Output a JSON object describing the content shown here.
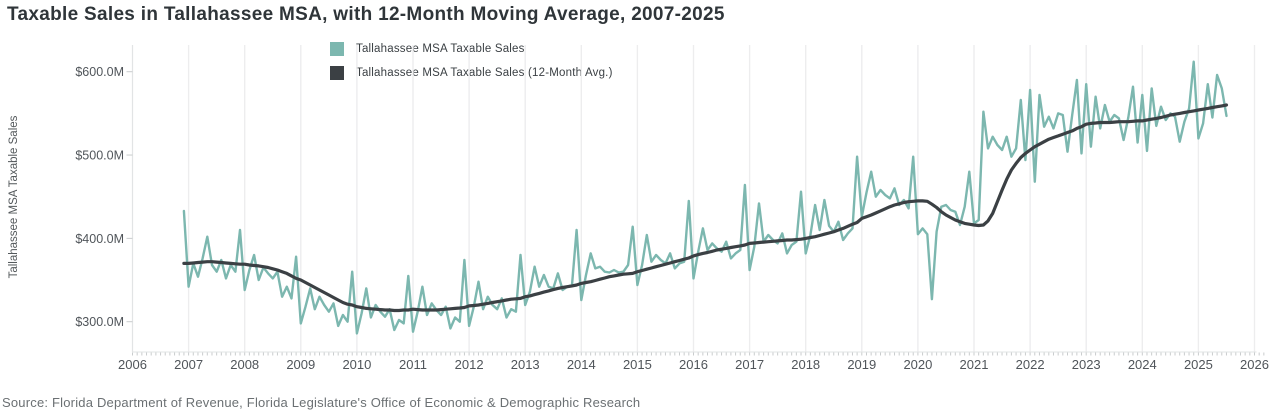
{
  "title": "Taxable Sales in Tallahassee MSA, with 12-Month Moving Average, 2007-2025",
  "source": "Source: Florida Department of Revenue, Florida Legislature's Office of Economic & Demographic Research",
  "colors": {
    "sales_line": "#7cb7af",
    "moving_avg_line": "#3b4044",
    "gridline": "#ededee",
    "axis_line": "#e2e4e5",
    "tick": "#c9cccd",
    "tick_label": "#50555a",
    "axis_title": "#53585b"
  },
  "legend": {
    "items": [
      {
        "label": "Tallahassee MSA Taxable Sales",
        "color": "#7cb7af"
      },
      {
        "label": "Tallahassee MSA Taxable Sales (12-Month Avg.)",
        "color": "#3b4044"
      }
    ]
  },
  "y_axis": {
    "title": "Tallahassee MSA Taxable Sales",
    "tick_labels": [
      "$300.0M",
      "$400.0M",
      "$500.0M",
      "$600.0M"
    ],
    "tick_values": [
      300,
      400,
      500,
      600
    ]
  },
  "x_axis": {
    "tick_labels": [
      "2006",
      "2007",
      "2008",
      "2009",
      "2010",
      "2011",
      "2012",
      "2013",
      "2014",
      "2015",
      "2016",
      "2017",
      "2018",
      "2019",
      "2020",
      "2021",
      "2022",
      "2023",
      "2024",
      "2025",
      "2026"
    ],
    "tick_values": [
      2006,
      2007,
      2008,
      2009,
      2010,
      2011,
      2012,
      2013,
      2014,
      2015,
      2016,
      2017,
      2018,
      2019,
      2020,
      2021,
      2022,
      2023,
      2024,
      2025,
      2026
    ]
  },
  "chart_data": {
    "type": "line",
    "x_unit": "decimal_year_monthly",
    "x_start": 2006.9167,
    "x_step": 0.0833,
    "xlim": [
      2006,
      2026.2
    ],
    "ylim_monetary_millions": [
      260,
      635
    ],
    "grid": "vertical-only",
    "legend_position": "top-inside",
    "series": [
      {
        "name": "Tallahassee MSA Taxable Sales",
        "color": "#7cb7af",
        "width": 2.4,
        "values": [
          433,
          342,
          370,
          354,
          376,
          402,
          368,
          360,
          374,
          352,
          368,
          360,
          410,
          338,
          362,
          380,
          350,
          365,
          358,
          352,
          360,
          330,
          342,
          328,
          378,
          298,
          318,
          340,
          315,
          330,
          320,
          312,
          322,
          295,
          308,
          300,
          360,
          286,
          310,
          340,
          305,
          320,
          312,
          306,
          315,
          290,
          302,
          298,
          355,
          288,
          312,
          342,
          308,
          322,
          314,
          308,
          318,
          292,
          305,
          300,
          374,
          295,
          318,
          348,
          315,
          330,
          320,
          315,
          328,
          305,
          315,
          312,
          380,
          320,
          336,
          366,
          342,
          356,
          342,
          340,
          358,
          338,
          342,
          344,
          410,
          326,
          356,
          382,
          364,
          366,
          360,
          359,
          362,
          359,
          360,
          368,
          414,
          344,
          368,
          404,
          372,
          380,
          374,
          370,
          382,
          364,
          370,
          372,
          445,
          352,
          384,
          412,
          386,
          394,
          388,
          384,
          396,
          376,
          382,
          386,
          464,
          362,
          390,
          442,
          396,
          404,
          398,
          394,
          406,
          382,
          392,
          396,
          456,
          382,
          404,
          440,
          410,
          446,
          415,
          408,
          420,
          398,
          406,
          412,
          498,
          426,
          455,
          480,
          450,
          458,
          452,
          448,
          460,
          440,
          446,
          436,
          498,
          405,
          412,
          405,
          327,
          408,
          438,
          440,
          434,
          432,
          416,
          438,
          480,
          418,
          422,
          552,
          508,
          522,
          512,
          506,
          522,
          498,
          508,
          566,
          494,
          578,
          468,
          572,
          534,
          546,
          532,
          550,
          548,
          504,
          548,
          590,
          502,
          585,
          510,
          570,
          532,
          560,
          540,
          548,
          544,
          518,
          545,
          582,
          515,
          572,
          505,
          580,
          535,
          558,
          542,
          550,
          546,
          516,
          540,
          556,
          612,
          520,
          538,
          585,
          545,
          596,
          580,
          547
        ]
      },
      {
        "name": "Tallahassee MSA Taxable Sales (12-Month Avg.)",
        "color": "#3b4044",
        "width": 3.2,
        "values": [
          370,
          370,
          370.5,
          371,
          371.5,
          372,
          372,
          371.5,
          371,
          370.5,
          370,
          369.5,
          369,
          369,
          368,
          367.5,
          367,
          366,
          365,
          363.5,
          362,
          360,
          358,
          355,
          352,
          350,
          347,
          344,
          341,
          338,
          335,
          332,
          329,
          326,
          323,
          321,
          320,
          318,
          317,
          316,
          315.5,
          315,
          314.5,
          314,
          314,
          313.5,
          313.5,
          314,
          314,
          315,
          314.5,
          314,
          314,
          314,
          314,
          314.5,
          315,
          315.5,
          316,
          316.5,
          317,
          319,
          319.5,
          320,
          321,
          322,
          323,
          324,
          325,
          326,
          327,
          327.5,
          328,
          330,
          331,
          332.5,
          334,
          335.5,
          337,
          338.5,
          340,
          341,
          342,
          343,
          344,
          346,
          347,
          348,
          349.5,
          351,
          352.5,
          354,
          355,
          356,
          357,
          357.5,
          358,
          360,
          361.5,
          363,
          364.5,
          366,
          367.5,
          369,
          370.5,
          372,
          373.5,
          375,
          376.5,
          379,
          380.5,
          382,
          383,
          384.5,
          386,
          387,
          388,
          389,
          390,
          391,
          392,
          394,
          394.5,
          395,
          395.5,
          396,
          396.5,
          397,
          397.5,
          398,
          398,
          398.5,
          399,
          400,
          401,
          402,
          403.5,
          405,
          406.5,
          408,
          410,
          412,
          414.5,
          417,
          419,
          424,
          426,
          428,
          430.5,
          433,
          435.5,
          438,
          440,
          441.5,
          443,
          444,
          444.5,
          445,
          445,
          444.5,
          441,
          437,
          432,
          428,
          425,
          422,
          420,
          418,
          417,
          416,
          415.5,
          416,
          421,
          430,
          444,
          458,
          471,
          482,
          490,
          497,
          502,
          506,
          510,
          513,
          516,
          519,
          521,
          523,
          525,
          527,
          529,
          532,
          534,
          537,
          538,
          538.5,
          539,
          539,
          539,
          539.5,
          540,
          540,
          540,
          540.5,
          541,
          541,
          542,
          543,
          544,
          545,
          546.5,
          548,
          549,
          550,
          551,
          552,
          553,
          554,
          555,
          556,
          557,
          558,
          559,
          560
        ]
      }
    ]
  }
}
